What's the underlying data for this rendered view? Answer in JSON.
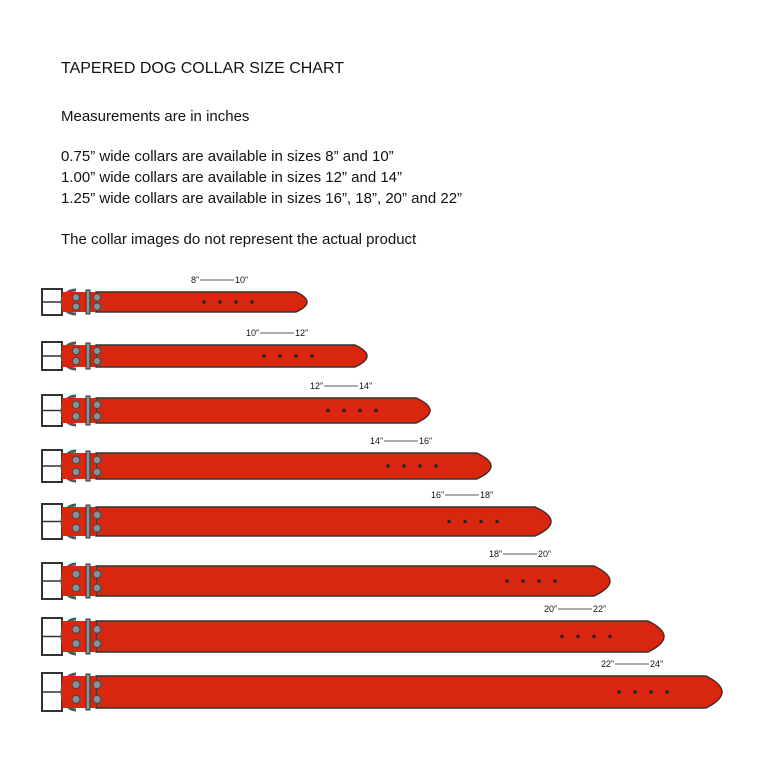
{
  "title": "TAPERED DOG COLLAR SIZE CHART",
  "subtitle": "Measurements are in inches",
  "availability": [
    "0.75” wide collars are available in sizes 8” and 10”",
    "1.00” wide collars are available in sizes 12” and 14”",
    "1.25” wide collars are available in sizes 16”, 18”, 20” and 22”"
  ],
  "note": "The collar images do not represent the actual product",
  "colors": {
    "strap": "#d9260f",
    "outline": "#333333",
    "hardware": "#8a8f96"
  },
  "collars": [
    {
      "from": "8”",
      "to": "10”"
    },
    {
      "from": "10”",
      "to": "12”"
    },
    {
      "from": "12”",
      "to": "14”"
    },
    {
      "from": "14”",
      "to": "16”"
    },
    {
      "from": "16”",
      "to": "18”"
    },
    {
      "from": "18”",
      "to": "20”"
    },
    {
      "from": "20”",
      "to": "22”"
    },
    {
      "from": "22”",
      "to": "24”"
    }
  ]
}
